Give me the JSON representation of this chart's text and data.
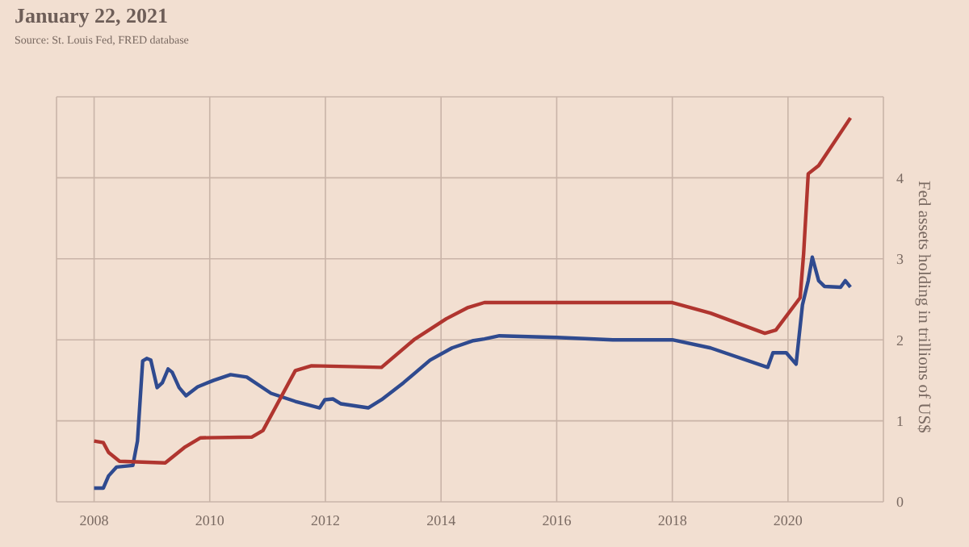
{
  "chart_data": {
    "type": "line",
    "title": "January 22, 2021",
    "annotations": [
      "Source: St. Louis Fed, FRED database"
    ],
    "ylabel": "Fed assets holding in trillions of US$",
    "xlim": [
      2007.35,
      2021.65
    ],
    "xticks": [
      2008,
      2010,
      2012,
      2014,
      2016,
      2018,
      2020
    ],
    "ylim": [
      0,
      5
    ],
    "yticks": [
      0,
      1,
      2,
      3,
      4
    ],
    "grid": true,
    "marker": "none",
    "series": [
      {
        "color": "#2f4a8f",
        "x": [
          2008.0,
          2008.16,
          2008.25,
          2008.39,
          2008.67,
          2008.75,
          2008.84,
          2008.91,
          2008.98,
          2009.09,
          2009.18,
          2009.28,
          2009.35,
          2009.47,
          2009.59,
          2009.79,
          2010.07,
          2010.36,
          2010.64,
          2011.06,
          2011.48,
          2011.9,
          2011.99,
          2012.13,
          2012.27,
          2012.74,
          2012.97,
          2013.35,
          2013.81,
          2014.19,
          2014.56,
          2014.75,
          2015.01,
          2016.0,
          2016.97,
          2018.0,
          2018.66,
          2019.65,
          2019.74,
          2019.97,
          2020.14,
          2020.25,
          2020.35,
          2020.42,
          2020.53,
          2020.63,
          2020.91,
          2020.99,
          2021.08
        ],
        "values": [
          0.17,
          0.17,
          0.32,
          0.43,
          0.45,
          0.75,
          1.74,
          1.77,
          1.75,
          1.41,
          1.47,
          1.64,
          1.6,
          1.41,
          1.31,
          1.42,
          1.5,
          1.57,
          1.54,
          1.34,
          1.24,
          1.16,
          1.26,
          1.27,
          1.21,
          1.16,
          1.26,
          1.47,
          1.75,
          1.9,
          1.99,
          2.01,
          2.05,
          2.03,
          2.0,
          2.0,
          1.9,
          1.66,
          1.84,
          1.84,
          1.7,
          2.43,
          2.73,
          3.02,
          2.73,
          2.66,
          2.65,
          2.73,
          2.65
        ]
      },
      {
        "color": "#b0352f",
        "x": [
          2008.0,
          2008.16,
          2008.25,
          2008.44,
          2009.23,
          2009.56,
          2009.84,
          2010.73,
          2010.92,
          2011.48,
          2011.76,
          2012.41,
          2012.97,
          2013.53,
          2014.09,
          2014.47,
          2014.75,
          2018.0,
          2018.66,
          2019.6,
          2019.79,
          2020.21,
          2020.27,
          2020.35,
          2020.53,
          2021.08
        ],
        "values": [
          0.75,
          0.73,
          0.61,
          0.5,
          0.48,
          0.67,
          0.79,
          0.8,
          0.88,
          1.62,
          1.68,
          1.67,
          1.66,
          2.0,
          2.26,
          2.4,
          2.46,
          2.46,
          2.33,
          2.08,
          2.12,
          2.52,
          3.06,
          4.05,
          4.15,
          4.74
        ]
      }
    ]
  }
}
